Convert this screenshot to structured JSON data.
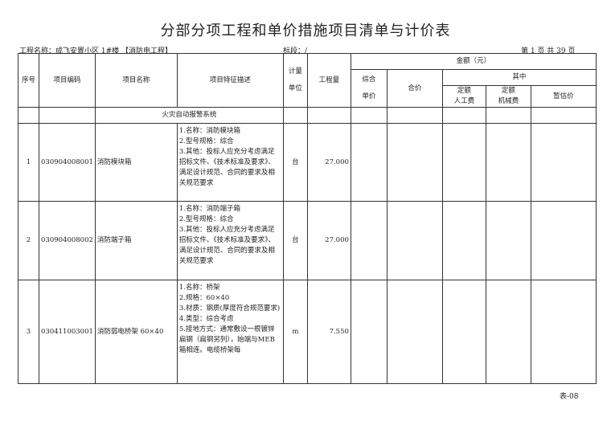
{
  "title": "分部分项工程和单价措施项目清单与计价表",
  "info": {
    "project": "工程名称：成飞安置小区 1#楼 【消防电工程】",
    "section": "标段：/",
    "page": "第 1 页 共 39 页"
  },
  "headers": {
    "seq": "序号",
    "code": "项目编码",
    "name": "项目名称",
    "desc": "项目特征描述",
    "unit_a": "计量",
    "unit_b": "单位",
    "qty": "工程量",
    "amount": "金额（元）",
    "unit_price_a": "综合",
    "unit_price_b": "单价",
    "total": "合价",
    "of_which": "其中",
    "labor_a": "定额",
    "labor_b": "人工费",
    "machine_a": "定额",
    "machine_b": "机械费",
    "provisional": "暂估价"
  },
  "section_title": "火灾自动报警系统",
  "rows": [
    {
      "seq": "1",
      "code": "030904008001",
      "name": "消防模块箱",
      "desc": [
        "1.名称：消防模块箱",
        "2.型号规格：综合",
        "3.其他：投标人应充分考虑满足招标文件、《技术标准及要求》、满足设计规范、合同的要求及相关规范要求"
      ],
      "unit": "台",
      "qty": "27.000"
    },
    {
      "seq": "2",
      "code": "030904008002",
      "name": "消防端子箱",
      "desc": [
        "1.名称：消防端子箱",
        "2.型号规格：综合",
        "3.其他：投标人应充分考虑满足招标文件、《技术标准及要求》、满足设计规范、合同的要求及相关规范要求"
      ],
      "unit": "台",
      "qty": "27.000"
    },
    {
      "seq": "3",
      "code": "030411003001",
      "name": "消防弱电桥架 60×40",
      "desc": [
        "1.名称：桥架",
        "2.规格：60×40",
        "3.材质：钢质(厚度符合规范要求)",
        "4.类型：综合考虑",
        "5.接地方式：通常敷设一根镀锌扁钢（扁钢另列），始端与MEB箱相连。电缆桥架每"
      ],
      "unit": "m",
      "qty": "7.550"
    }
  ],
  "footer": "表-08"
}
